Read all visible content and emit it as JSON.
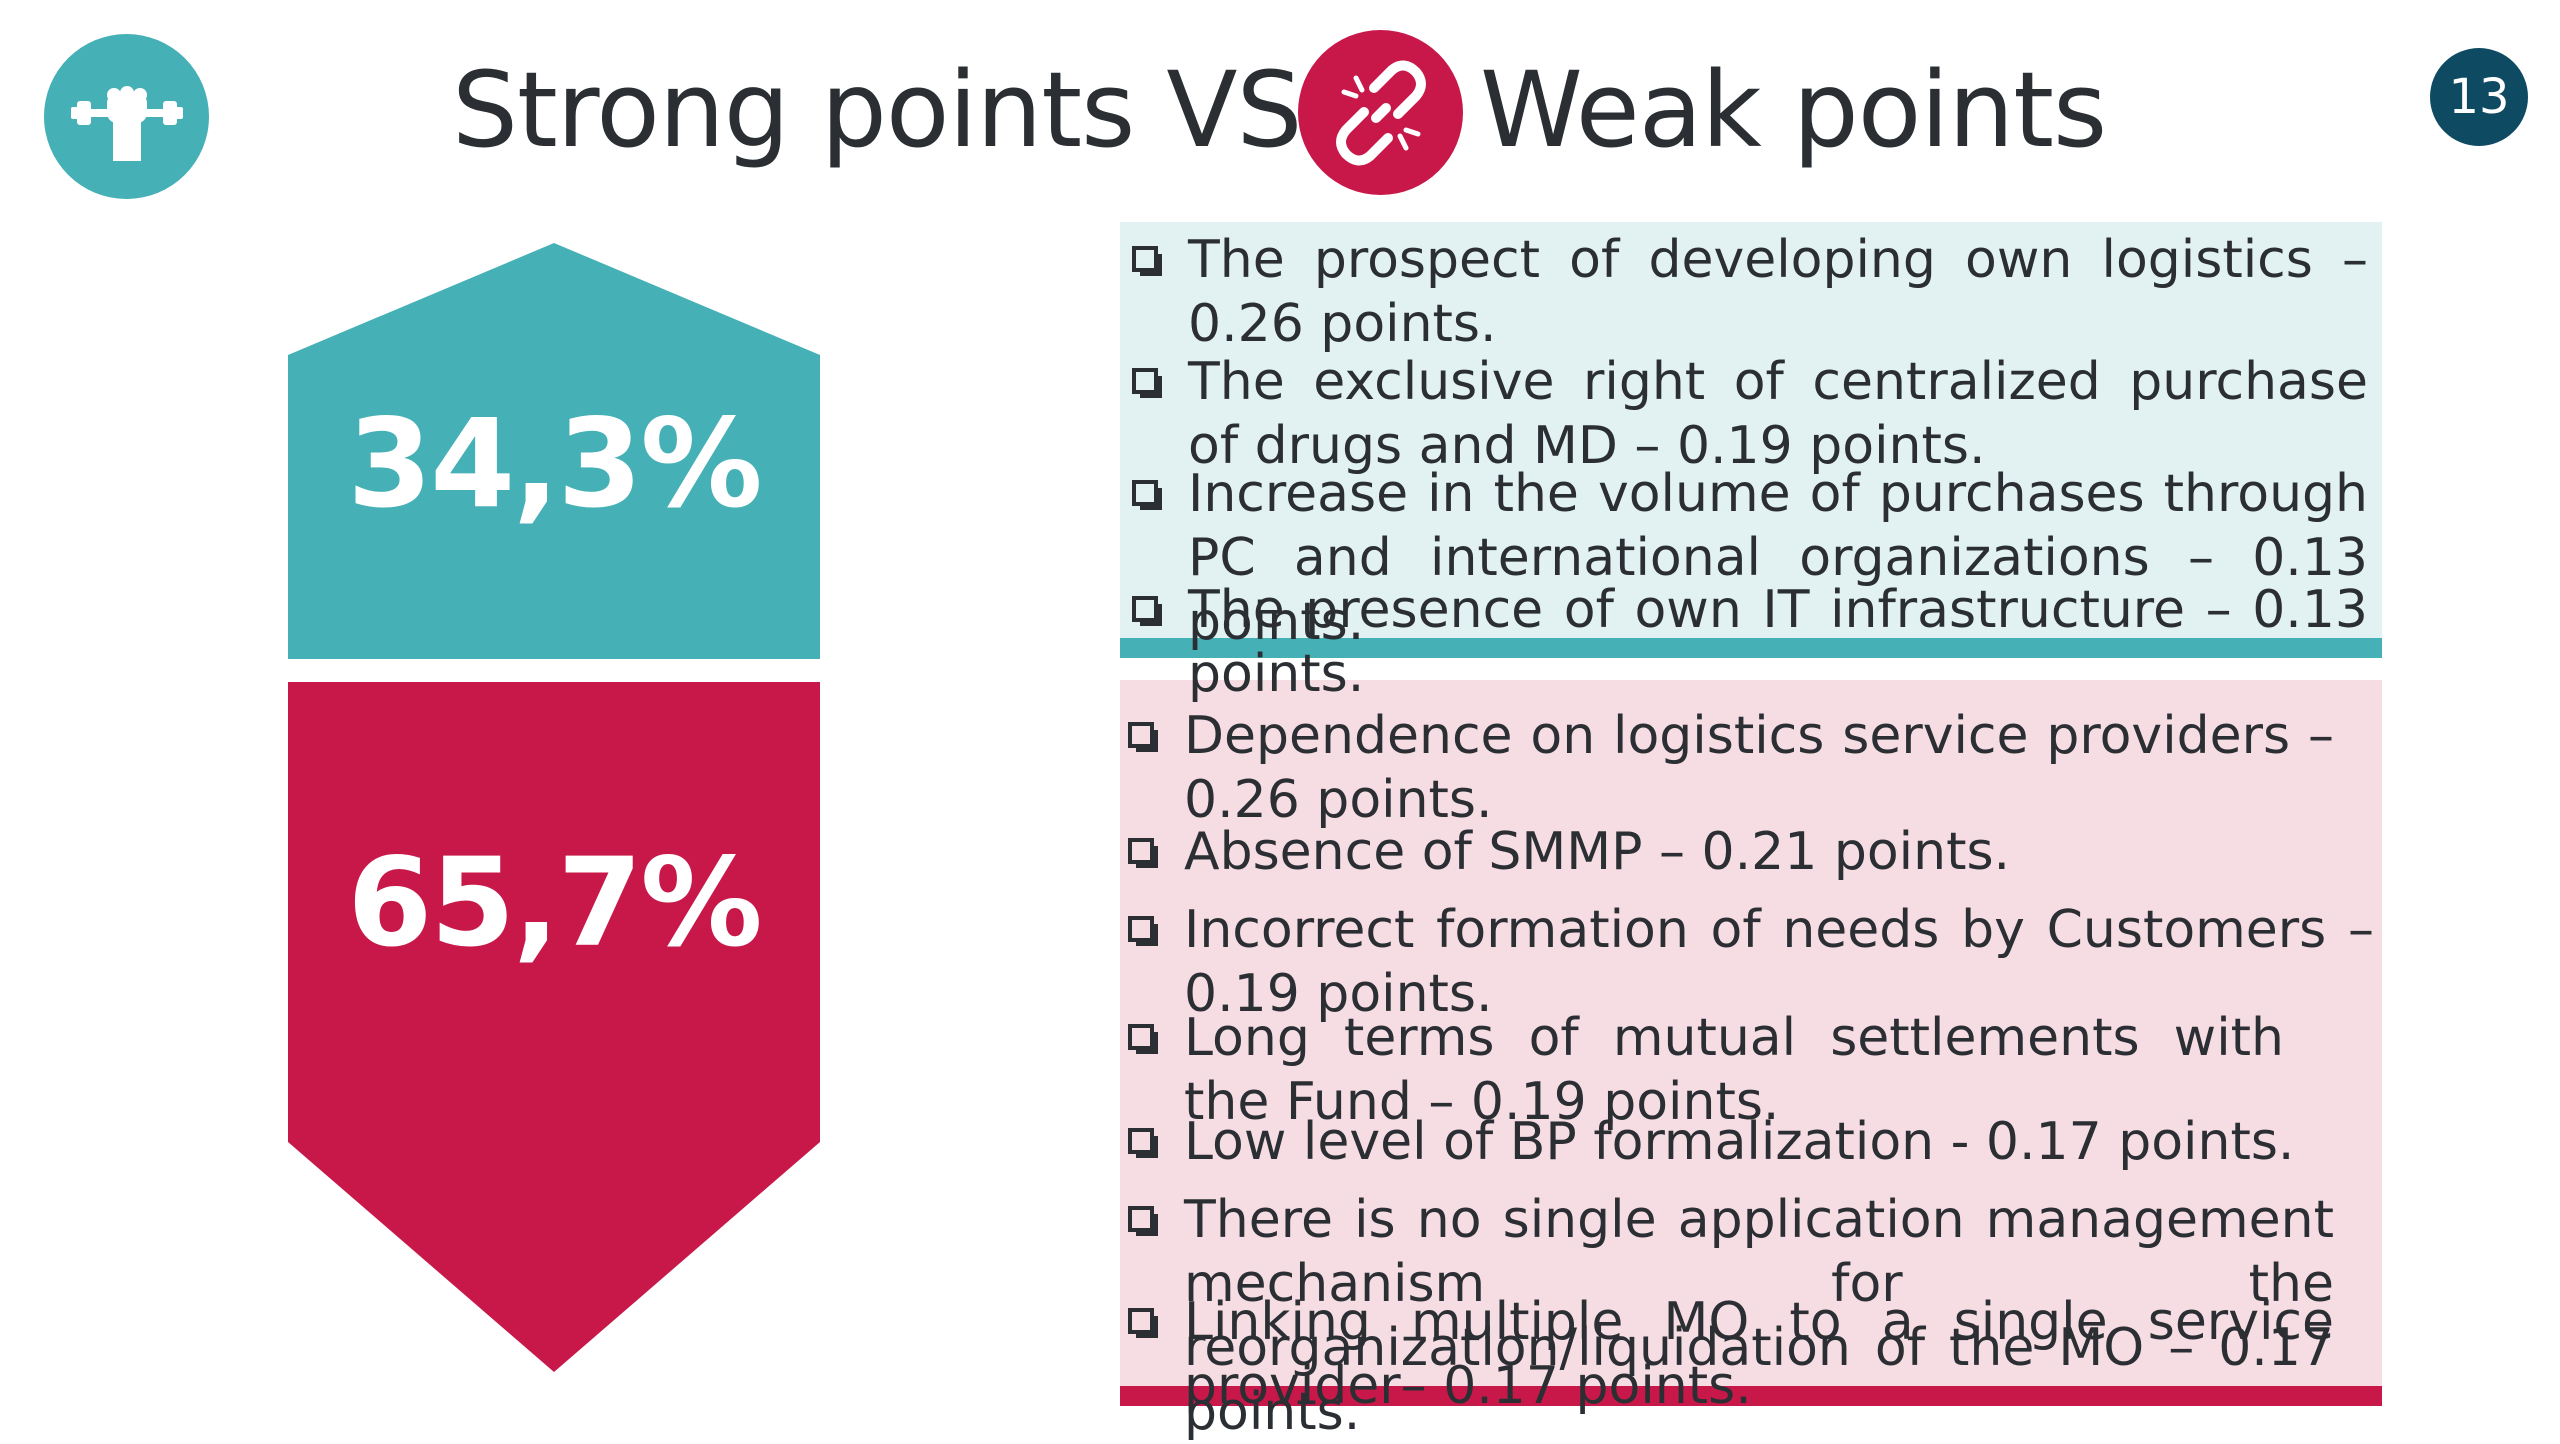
{
  "header": {
    "title_strong": "Strong points VS",
    "title_weak": "Weak points",
    "page_number": "13"
  },
  "icons": {
    "strong": "flexed-arm-dumbbell-icon",
    "weak": "broken-chain-link-icon"
  },
  "colors": {
    "strong": "#45b0b5",
    "weak": "#c8184a",
    "strong_panel": "#e2f2f3",
    "weak_panel": "#f6dde3",
    "badge": "#0f4a63",
    "text": "#2b2f33"
  },
  "strong_percent": "34,3%",
  "weak_percent": "65,7%",
  "strong_items": [
    "The prospect of developing own logistics – 0.26 points.",
    "The exclusive right of centralized purchase of drugs and MD – 0.19 points.",
    "Increase in the volume of purchases through PC and international organizations – 0.13 points.",
    "The presence of own IT infrastructure – 0.13 points."
  ],
  "weak_items": [
    "Dependence on logistics service providers – 0.26 points.",
    "Absence of SMMP – 0.21 points.",
    "Incorrect formation of needs by Customers – 0.19 points.",
    "Long terms of mutual settlements with the Fund – 0.19 points.",
    "Low level of BP formalization - 0.17 points.",
    "There is no single application management mechanism for the reorganization/liquidation of the MO – 0.17 points.",
    "Linking multiple MO to a single service provider– 0.17 points."
  ]
}
